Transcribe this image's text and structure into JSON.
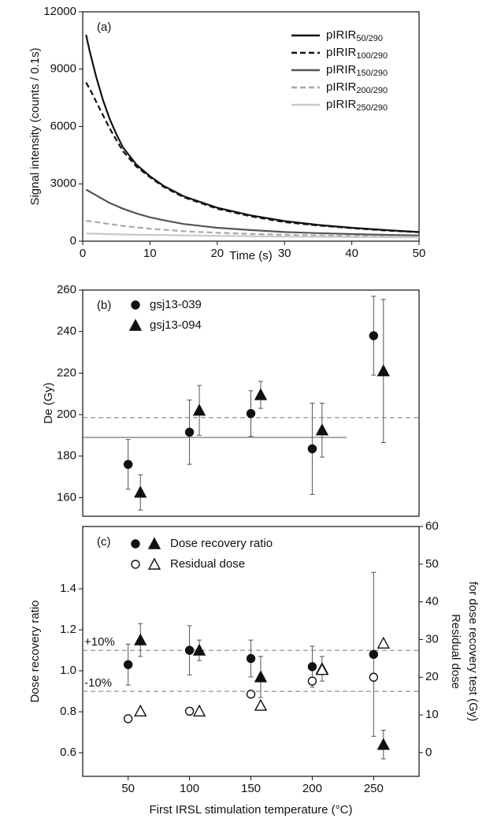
{
  "chart_data": [
    {
      "type": "line",
      "annotation": "(a)",
      "xlabel": "Time (s)",
      "ylabel": "Signal intensity (counts / 0.1s)",
      "xlim": [
        0,
        50
      ],
      "ylim": [
        0,
        12000
      ],
      "xticks": [
        0,
        10,
        20,
        30,
        40,
        50
      ],
      "yticks": [
        0,
        3000,
        6000,
        9000,
        12000
      ],
      "x": [
        0.5,
        1,
        2,
        3,
        4,
        5,
        6,
        8,
        10,
        12,
        15,
        20,
        25,
        30,
        35,
        40,
        45,
        50
      ],
      "series": [
        {
          "name": "pIRIR50/290",
          "color": "#111111",
          "dash": false,
          "values": [
            10800,
            10000,
            8600,
            7400,
            6400,
            5600,
            4900,
            4000,
            3400,
            2900,
            2350,
            1750,
            1350,
            1050,
            850,
            700,
            580,
            480
          ]
        },
        {
          "name": "pIRIR100/290",
          "color": "#111111",
          "dash": true,
          "values": [
            8300,
            8000,
            7300,
            6600,
            5900,
            5300,
            4700,
            3900,
            3350,
            2850,
            2300,
            1700,
            1300,
            1000,
            820,
            680,
            560,
            470
          ]
        },
        {
          "name": "pIRIR150/290",
          "color": "#555555",
          "dash": false,
          "values": [
            2700,
            2600,
            2400,
            2200,
            2000,
            1850,
            1700,
            1450,
            1250,
            1100,
            900,
            700,
            580,
            480,
            420,
            370,
            330,
            300
          ]
        },
        {
          "name": "pIRIR200/290",
          "color": "#a8a8a8",
          "dash": true,
          "values": [
            1050,
            1050,
            1000,
            950,
            900,
            850,
            800,
            720,
            650,
            600,
            520,
            440,
            380,
            340,
            300,
            270,
            250,
            230
          ]
        },
        {
          "name": "pIRIR250/290",
          "color": "#c8c8c8",
          "dash": false,
          "values": [
            400,
            400,
            390,
            380,
            370,
            360,
            350,
            340,
            330,
            320,
            300,
            280,
            260,
            240,
            230,
            220,
            210,
            200
          ]
        }
      ]
    },
    {
      "type": "scatter",
      "annotation": "(b)",
      "ylabel": "De (Gy)",
      "xlim": [
        13,
        287
      ],
      "ylim": [
        151,
        260
      ],
      "yticks": [
        160,
        180,
        200,
        220,
        240,
        260
      ],
      "ref_lines": [
        {
          "value": 198.5,
          "dash": true
        },
        {
          "value": 189,
          "dash": false,
          "xlim": [
            13,
            228
          ]
        }
      ],
      "series": [
        {
          "name": "gsj13-039",
          "marker": "circle",
          "filled": true,
          "x": [
            50,
            100,
            150,
            200,
            250
          ],
          "values": [
            176,
            191.5,
            200.5,
            183.5,
            238
          ],
          "errors": [
            12,
            15.5,
            11,
            22,
            19
          ]
        },
        {
          "name": "gsj13-094",
          "marker": "triangle",
          "filled": true,
          "x": [
            60,
            108,
            158,
            208,
            258
          ],
          "values": [
            162.5,
            202,
            209.5,
            192.5,
            221
          ],
          "errors": [
            8.5,
            12,
            6.5,
            13,
            34.5
          ]
        }
      ]
    },
    {
      "type": "scatter",
      "annotation": "(c)",
      "xlabel": "First IRSL stimulation temperature (°C)",
      "ylabel": "Dose recovery ratio",
      "y2label": [
        "Residual dose",
        "for dose recovery test (Gy)"
      ],
      "xlim": [
        13,
        287
      ],
      "ylim": [
        0.485,
        1.704
      ],
      "y2lim": [
        -6.3,
        60
      ],
      "xticks": [
        50,
        100,
        150,
        200,
        250
      ],
      "yticks": [
        0.6,
        0.8,
        {
          "value": 1,
          "label": "1.0"
        },
        1.2,
        1.4
      ],
      "y2ticks": [
        0,
        10,
        20,
        30,
        40,
        50,
        60
      ],
      "ref_lines": [
        {
          "value": 1.1,
          "dash": true,
          "label": "+10%"
        },
        {
          "value": 0.9,
          "dash": true,
          "label": "-10%"
        }
      ],
      "series": [
        {
          "name": "Dose recovery ratio",
          "axis": "y",
          "filled": true,
          "groups": [
            {
              "marker": "circle",
              "x": [
                50,
                100,
                150,
                200,
                250
              ],
              "values": [
                1.03,
                1.1,
                1.06,
                1.02,
                1.08
              ],
              "errors": [
                0.1,
                0.12,
                0.09,
                0.1,
                0.4
              ]
            },
            {
              "marker": "triangle",
              "x": [
                60,
                108,
                158,
                208,
                258
              ],
              "values": [
                1.15,
                1.1,
                0.97,
                1.01,
                0.64
              ],
              "errors": [
                0.08,
                0.05,
                0.1,
                0.06,
                0.07
              ]
            }
          ]
        },
        {
          "name": "Residual dose",
          "axis": "y2",
          "filled": false,
          "groups": [
            {
              "marker": "circle",
              "x": [
                50,
                100,
                150,
                200,
                250
              ],
              "values": [
                9,
                11,
                15.5,
                19,
                20
              ],
              "errors": [
                0.5,
                1,
                1,
                1,
                1
              ]
            },
            {
              "marker": "triangle",
              "x": [
                60,
                108,
                158,
                208,
                258
              ],
              "values": [
                11,
                11,
                12.5,
                22,
                29
              ]
            }
          ]
        }
      ]
    }
  ]
}
